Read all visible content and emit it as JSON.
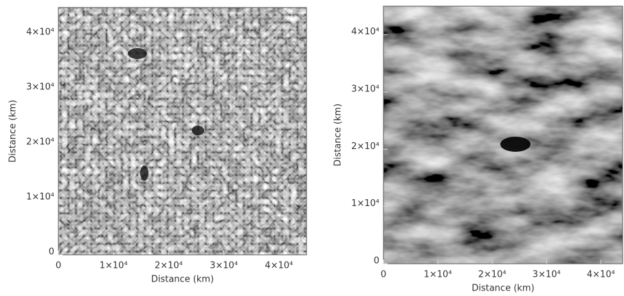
{
  "chart_data": [
    {
      "type": "image",
      "xlabel": "Distance (km)",
      "ylabel": "Distance (km)",
      "xlim": [
        0,
        45000
      ],
      "ylim": [
        0,
        45000
      ],
      "xticks": [
        0,
        {
          "value": 10000,
          "label": "1×10⁴"
        },
        {
          "value": 20000,
          "label": "2×10⁴"
        },
        {
          "value": 30000,
          "label": "3×10⁴"
        },
        {
          "value": 40000,
          "label": "4×10⁴"
        }
      ],
      "yticks": [
        0,
        {
          "value": 10000,
          "label": "1×10⁴"
        },
        {
          "value": 20000,
          "label": "2×10⁴"
        },
        {
          "value": 30000,
          "label": "3×10⁴"
        },
        {
          "value": 40000,
          "label": "4×10⁴"
        }
      ]
    },
    {
      "type": "image",
      "xlabel": "Distance (km)",
      "ylabel": "Distance (km)",
      "xlim": [
        0,
        44000
      ],
      "ylim": [
        0,
        45000
      ],
      "xticks": [
        0,
        {
          "value": 10000,
          "label": "1×10⁴"
        },
        {
          "value": 20000,
          "label": "2×10⁴"
        },
        {
          "value": 30000,
          "label": "3×10⁴"
        },
        {
          "value": 40000,
          "label": "4×10⁴"
        }
      ],
      "yticks": [
        0,
        {
          "value": 10000,
          "label": "1×10⁴"
        },
        {
          "value": 20000,
          "label": "2×10⁴"
        },
        {
          "value": 30000,
          "label": "3×10⁴"
        },
        {
          "value": 40000,
          "label": "4×10⁴"
        }
      ]
    }
  ]
}
